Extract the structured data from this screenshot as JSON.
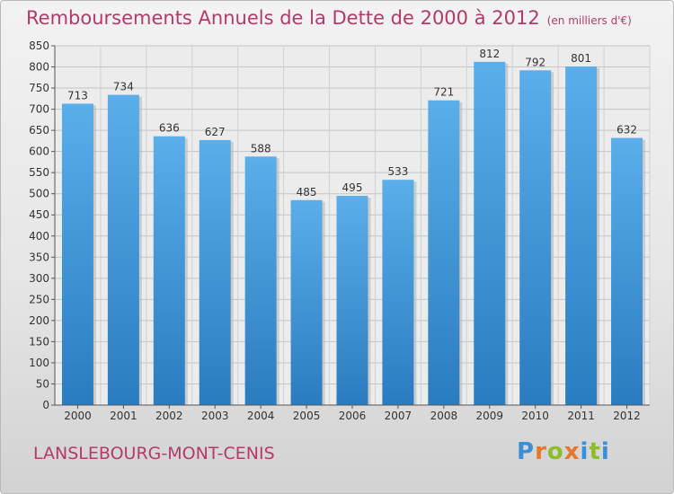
{
  "header": {
    "title": "Remboursements Annuels de la Dette de 2000 à 2012",
    "subtitle": "(en milliers d'€)"
  },
  "footer": {
    "city": "LANSLEBOURG-MONT-CENIS",
    "logo_text": "Proxiti"
  },
  "colors": {
    "title": "#b5396d",
    "bar_top": "#5aaeea",
    "bar_bottom": "#2a7cc0"
  },
  "chart_data": {
    "type": "bar",
    "title": "Remboursements Annuels de la Dette de 2000 à 2012",
    "subtitle": "(en milliers d'€)",
    "categories": [
      "2000",
      "2001",
      "2002",
      "2003",
      "2004",
      "2005",
      "2006",
      "2007",
      "2008",
      "2009",
      "2010",
      "2011",
      "2012"
    ],
    "values": [
      713,
      734,
      636,
      627,
      588,
      485,
      495,
      533,
      721,
      812,
      792,
      801,
      632
    ],
    "ylim": [
      0,
      850
    ],
    "ytick_step": 50,
    "grid": true,
    "data_labels": true
  }
}
